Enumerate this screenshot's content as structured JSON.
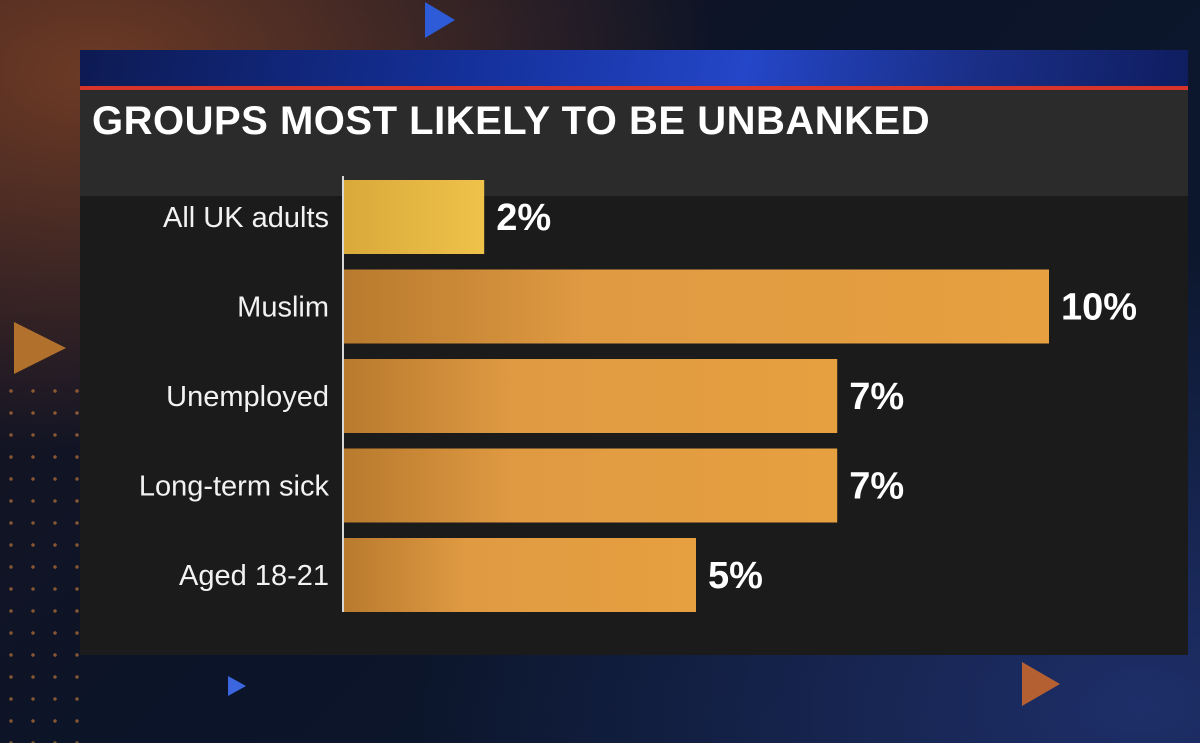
{
  "colors": {
    "bar_primary": "#ecbf45",
    "bar_secondary": "#e39a3e",
    "panel": "#1b1b1b",
    "title_bar": "#2b2b2b",
    "accent_red": "#d8342a",
    "accent_blue": "#2446c8"
  },
  "chart_data": {
    "type": "bar",
    "orientation": "horizontal",
    "title": "GROUPS MOST LIKELY TO BE UNBANKED",
    "categories": [
      "All UK adults",
      "Muslim",
      "Unemployed",
      "Long-term sick",
      "Aged 18-21"
    ],
    "values": [
      2,
      10,
      7,
      7,
      5
    ],
    "value_labels": [
      "2%",
      "10%",
      "7%",
      "7%",
      "5%"
    ],
    "unit": "%",
    "xlim": [
      0,
      10
    ],
    "grid": false,
    "legend": "none"
  }
}
